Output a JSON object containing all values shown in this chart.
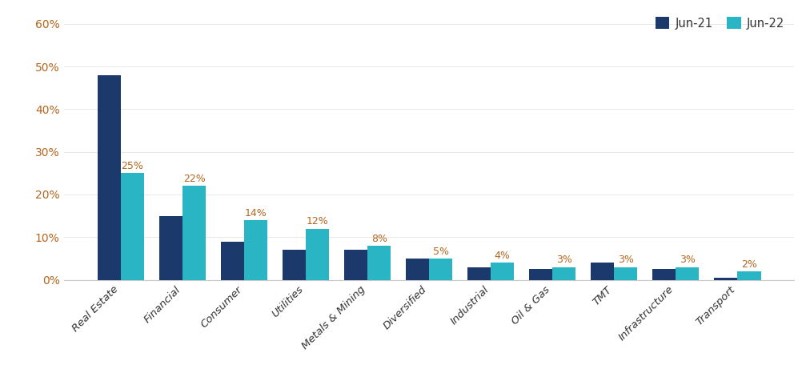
{
  "categories": [
    "Real Estate",
    "Financial",
    "Consumer",
    "Utilities",
    "Metals & Mining",
    "Diversified",
    "Industrial",
    "Oil & Gas",
    "TMT",
    "Infrastructure",
    "Transport"
  ],
  "jun21": [
    0.48,
    0.15,
    0.09,
    0.07,
    0.07,
    0.05,
    0.03,
    0.025,
    0.04,
    0.025,
    0.005
  ],
  "jun22": [
    0.25,
    0.22,
    0.14,
    0.12,
    0.08,
    0.05,
    0.04,
    0.03,
    0.03,
    0.03,
    0.02
  ],
  "jun22_labels": [
    "25%",
    "22%",
    "14%",
    "12%",
    "8%",
    "5%",
    "4%",
    "3%",
    "3%",
    "3%",
    "2%"
  ],
  "color_jun21": "#1b3a6b",
  "color_jun22": "#29b5c4",
  "legend_jun21": "Jun-21",
  "legend_jun22": "Jun-22",
  "ylim": [
    0,
    0.63
  ],
  "yticks": [
    0.0,
    0.1,
    0.2,
    0.3,
    0.4,
    0.5,
    0.6
  ],
  "ytick_labels": [
    "0%",
    "10%",
    "20%",
    "30%",
    "40%",
    "50%",
    "60%"
  ],
  "label_color": "#b5651d",
  "ytick_color": "#b5651d",
  "background_color": "#ffffff",
  "bar_width": 0.38,
  "legend_text_color": "#333333"
}
